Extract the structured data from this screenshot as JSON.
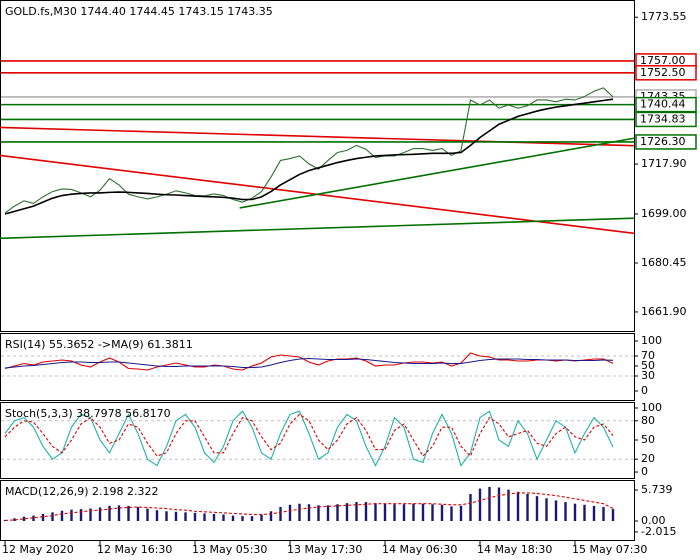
{
  "chart_data": [
    {
      "type": "line",
      "title": "GOLD.fs,M30  1744.40 1744.45 1743.15 1743.35",
      "ylim": [
        1654.3,
        1779.7
      ],
      "yticks": [
        1773.55,
        {
          "value": 1717.9,
          "label": "1717.90"
        },
        {
          "value": 1699,
          "label": "1699.00"
        },
        {
          "value": 1680.45,
          "label": "1680.45"
        },
        {
          "value": 1661.9,
          "label": "1661.90"
        }
      ],
      "series": [
        {
          "name": "Price",
          "color": "#2f6f2f",
          "values": [
            1699.4,
            1702,
            1704,
            1703,
            1705.5,
            1707.5,
            1708.5,
            1708.3,
            1707,
            1705.5,
            1708,
            1712.4,
            1710,
            1706.5,
            1705.5,
            1704.7,
            1705.5,
            1706.5,
            1707.8,
            1707,
            1706,
            1705.9,
            1706.6,
            1706,
            1704.5,
            1703.5,
            1705,
            1707.5,
            1713,
            1719.3,
            1720,
            1721,
            1718,
            1716,
            1719.3,
            1722.3,
            1723.1,
            1725,
            1723.5,
            1720.4,
            1721,
            1721,
            1722.3,
            1723.8,
            1723.8,
            1723.1,
            1723.8,
            1721.2,
            1723,
            1742.2,
            1740.3,
            1742.2,
            1739.1,
            1740.3,
            1739.1,
            1740,
            1742.2,
            1742.2,
            1741.5,
            1742.5,
            1742.2,
            1743.5,
            1745.5,
            1746.8,
            1743.35
          ]
        },
        {
          "name": "MA",
          "color": "#000000",
          "values": [
            1699,
            1700,
            1701,
            1702,
            1703.5,
            1705,
            1706,
            1706.5,
            1706.8,
            1707,
            1707,
            1707.2,
            1707.3,
            1707.2,
            1707,
            1706.8,
            1706.5,
            1706.3,
            1706.2,
            1706,
            1705.8,
            1705.6,
            1705.5,
            1705.3,
            1705,
            1704.5,
            1704.5,
            1705.5,
            1707.5,
            1710,
            1712,
            1714,
            1715.5,
            1716.5,
            1717.5,
            1718.5,
            1719.3,
            1720,
            1720.5,
            1721,
            1721.2,
            1721.4,
            1721.5,
            1721.6,
            1721.8,
            1722,
            1722,
            1722,
            1722.3,
            1725,
            1728,
            1730.5,
            1733,
            1734.5,
            1736,
            1737,
            1738,
            1738.8,
            1739.5,
            1740,
            1740.5,
            1741,
            1741.5,
            1742,
            1742.5
          ]
        }
      ],
      "levels": [
        {
          "value": {
            "value": 1757,
            "label": "1757.00"
          },
          "color": "#e00000"
        },
        {
          "value": {
            "value": 1752.5,
            "label": "1752.50"
          },
          "color": "#e00000"
        },
        {
          "value": 1743.35,
          "color": "#b0b0b0"
        },
        {
          "value": 1740.44,
          "color": "#007000"
        },
        {
          "value": 1734.83,
          "color": "#007000"
        },
        {
          "value": {
            "value": 1726.3,
            "label": "1726.30"
          },
          "color": "#007000"
        }
      ],
      "trend_lines": [
        {
          "x": [
            -0.53,
            66.2
          ],
          "y": [
            1731.8,
            1724.9
          ],
          "color": "#e00000"
        },
        {
          "x": [
            -0.53,
            66.2
          ],
          "y": [
            1721.2,
            1691.7
          ],
          "color": "#e00000"
        },
        {
          "x": [
            -0.53,
            66.2
          ],
          "y": [
            1689.8,
            1697.4
          ],
          "color": "#007000"
        },
        {
          "x": [
            24.7,
            66.2
          ],
          "y": [
            1701.3,
            1727.7
          ],
          "color": "#007000"
        }
      ]
    },
    {
      "type": "line",
      "title": "RSI(14) 55.3652 ->MA(9) 61.3811",
      "ylim": [
        -20,
        114
      ],
      "yticks": [
        0,
        30,
        50,
        70,
        100
      ],
      "grid_ticks": [
        30,
        70
      ],
      "series": [
        {
          "name": "RSI",
          "color": "#e00000",
          "values": [
            45,
            50,
            55,
            52,
            58,
            60,
            62,
            60,
            52,
            48,
            58,
            66,
            58,
            45,
            44,
            42,
            48,
            52,
            56,
            52,
            48,
            48,
            52,
            50,
            44,
            42,
            50,
            56,
            68,
            72,
            70,
            68,
            58,
            52,
            60,
            64,
            64,
            66,
            60,
            50,
            52,
            52,
            56,
            58,
            58,
            56,
            58,
            50,
            56,
            76,
            70,
            68,
            62,
            62,
            60,
            60,
            62,
            62,
            60,
            62,
            60,
            62,
            64,
            64,
            55.3652
          ]
        },
        {
          "name": "MA",
          "color": "#1a1a8c",
          "values": [
            46,
            48,
            50,
            51,
            53,
            55,
            57,
            58,
            58,
            57,
            57,
            58,
            58,
            56,
            54,
            52,
            50,
            49,
            49,
            50,
            50,
            50,
            50,
            50,
            49,
            47,
            47,
            48,
            52,
            57,
            61,
            64,
            65,
            64,
            63,
            63,
            63,
            64,
            63,
            61,
            59,
            57,
            56,
            55,
            55,
            55,
            56,
            55,
            55,
            58,
            61,
            63,
            64,
            64,
            64,
            63,
            63,
            62,
            62,
            62,
            61,
            61,
            61,
            62,
            61.3811
          ]
        }
      ]
    },
    {
      "type": "line",
      "title": "Stoch(5,3,3) 38.7978 56.8170",
      "ylim": [
        -10.9,
        107.8
      ],
      "yticks": [
        0,
        20,
        50,
        80,
        100
      ],
      "grid_ticks": [
        20,
        80
      ],
      "series": [
        {
          "name": "Main",
          "color": "#20b2aa",
          "values": [
            60,
            80,
            85,
            70,
            40,
            20,
            30,
            70,
            90,
            85,
            50,
            30,
            60,
            90,
            60,
            20,
            10,
            40,
            80,
            90,
            70,
            30,
            15,
            40,
            80,
            95,
            70,
            30,
            20,
            60,
            90,
            95,
            60,
            20,
            30,
            70,
            90,
            80,
            40,
            10,
            40,
            85,
            70,
            20,
            15,
            60,
            90,
            60,
            10,
            30,
            85,
            95,
            50,
            40,
            80,
            60,
            20,
            50,
            80,
            70,
            30,
            60,
            85,
            70,
            38.7978
          ]
        },
        {
          "name": "Signal",
          "color": "#e00000",
          "dashed": true,
          "values": [
            55,
            70,
            80,
            78,
            60,
            40,
            30,
            50,
            75,
            85,
            70,
            45,
            50,
            75,
            70,
            45,
            25,
            30,
            60,
            80,
            80,
            55,
            30,
            30,
            60,
            85,
            80,
            55,
            35,
            45,
            75,
            90,
            80,
            50,
            35,
            50,
            75,
            85,
            65,
            35,
            35,
            65,
            75,
            50,
            25,
            40,
            70,
            70,
            40,
            25,
            60,
            85,
            75,
            55,
            60,
            65,
            45,
            40,
            60,
            70,
            55,
            50,
            70,
            75,
            56.817
          ]
        }
      ]
    },
    {
      "type": "macd",
      "title": "MACD(12,26,9) 2.198 2.322",
      "ylim": [
        -3.7,
        7.4
      ],
      "yticks": [
        5.739,
        {
          "value": 0,
          "label": "0.00"
        },
        -2.015
      ],
      "categories": [
        "12 May 2020",
        null,
        null,
        null,
        null,
        null,
        null,
        null,
        null,
        null,
        "12 May 16:30",
        null,
        null,
        null,
        null,
        null,
        null,
        null,
        null,
        null,
        "13 May 05:30",
        null,
        null,
        null,
        null,
        null,
        null,
        null,
        null,
        null,
        "13 May 17:30",
        null,
        null,
        null,
        null,
        null,
        null,
        null,
        null,
        null,
        "14 May 06:30",
        null,
        null,
        null,
        null,
        null,
        null,
        null,
        null,
        null,
        "14 May 18:30",
        null,
        null,
        null,
        null,
        null,
        null,
        null,
        null,
        null,
        "15 May 07:30",
        null,
        null,
        null,
        null
      ],
      "series": [
        {
          "name": "MACD",
          "color": "#191970",
          "values": [
            0.2,
            0.5,
            0.8,
            1.0,
            1.3,
            1.6,
            1.9,
            2.1,
            2.2,
            2.3,
            2.5,
            2.8,
            2.9,
            2.8,
            2.6,
            2.3,
            2.0,
            1.8,
            1.7,
            1.6,
            1.5,
            1.4,
            1.3,
            1.2,
            1.0,
            0.9,
            0.9,
            1.2,
            1.8,
            2.6,
            3.0,
            3.2,
            3.1,
            2.9,
            2.9,
            3.1,
            3.3,
            3.5,
            3.5,
            3.3,
            3.2,
            3.1,
            3.1,
            3.2,
            3.2,
            3.1,
            3.0,
            2.7,
            2.8,
            5.0,
            6.0,
            6.3,
            6.2,
            5.8,
            5.4,
            5.0,
            4.6,
            4.2,
            3.8,
            3.5,
            3.2,
            3.0,
            2.8,
            2.6,
            2.198
          ]
        },
        {
          "name": "Signal",
          "color": "#e00000",
          "dashed": true,
          "values": [
            0.1,
            0.2,
            0.4,
            0.6,
            0.8,
            1.0,
            1.3,
            1.5,
            1.7,
            1.9,
            2.0,
            2.2,
            2.4,
            2.5,
            2.6,
            2.5,
            2.4,
            2.3,
            2.1,
            2.0,
            1.8,
            1.7,
            1.6,
            1.5,
            1.4,
            1.3,
            1.2,
            1.2,
            1.3,
            1.6,
            1.9,
            2.2,
            2.4,
            2.6,
            2.7,
            2.8,
            2.9,
            3.0,
            3.1,
            3.2,
            3.2,
            3.2,
            3.2,
            3.2,
            3.2,
            3.2,
            3.1,
            3.0,
            3.0,
            3.3,
            3.8,
            4.3,
            4.7,
            5.0,
            5.2,
            5.2,
            5.1,
            4.9,
            4.7,
            4.4,
            4.1,
            3.8,
            3.5,
            3.2,
            2.322
          ]
        }
      ]
    }
  ]
}
